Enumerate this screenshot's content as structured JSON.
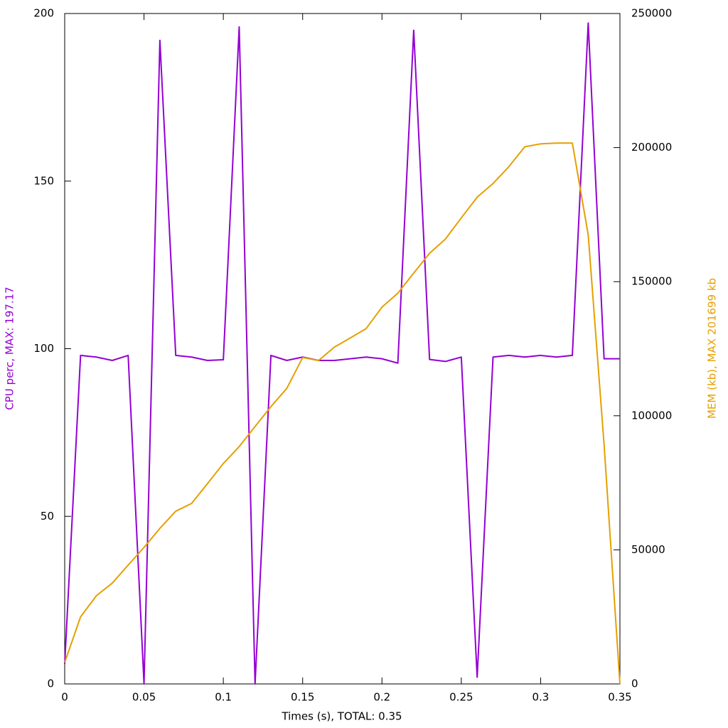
{
  "chart_data": {
    "type": "line",
    "x_label": "Times (s), TOTAL: 0.35",
    "y_label": "CPU perc, MAX: 197.17",
    "y2_label": "MEM (kb), MAX 201699 kb",
    "x": [
      0,
      0.01,
      0.02,
      0.03,
      0.04,
      0.05,
      0.06,
      0.07,
      0.08,
      0.09,
      0.1,
      0.11,
      0.12,
      0.13,
      0.14,
      0.15,
      0.16,
      0.17,
      0.18,
      0.19,
      0.2,
      0.21,
      0.22,
      0.23,
      0.24,
      0.25,
      0.26,
      0.27,
      0.28,
      0.29,
      0.3,
      0.31,
      0.32,
      0.33,
      0.34,
      0.35
    ],
    "series": [
      {
        "name": "CPU perc",
        "color": "#9400d3",
        "values": [
          6,
          98,
          97.5,
          96.5,
          98,
          0,
          192,
          98,
          97.5,
          96.5,
          96.7,
          196,
          0,
          98,
          96.5,
          97.5,
          96.5,
          96.5,
          97,
          97.5,
          97,
          95.7,
          195,
          96.8,
          96.2,
          97.5,
          2,
          97.5,
          98,
          97.5,
          98,
          97.5,
          98,
          197.17,
          97,
          97
        ]
      },
      {
        "name": "MEM (kb)",
        "color": "#e69f00",
        "axis": "y2",
        "values": [
          8000,
          25000,
          32900,
          37600,
          44300,
          50900,
          58000,
          64400,
          67300,
          74700,
          82200,
          88500,
          96000,
          103400,
          110200,
          121700,
          120600,
          125600,
          129000,
          132500,
          140500,
          145700,
          153200,
          160600,
          165900,
          173800,
          181500,
          186600,
          192900,
          200300,
          201400,
          201699,
          201699,
          167500,
          89300,
          0
        ]
      }
    ],
    "xlim": [
      0,
      0.35
    ],
    "xticks": [
      0,
      0.05,
      0.1,
      0.15,
      0.2,
      0.25,
      0.3,
      0.35
    ],
    "ylim": [
      0,
      200
    ],
    "yticks": [
      0,
      50,
      100,
      150,
      200
    ],
    "y2lim": [
      0,
      250000
    ],
    "y2ticks": [
      0,
      50000,
      100000,
      150000,
      200000,
      250000
    ],
    "grid": false
  }
}
